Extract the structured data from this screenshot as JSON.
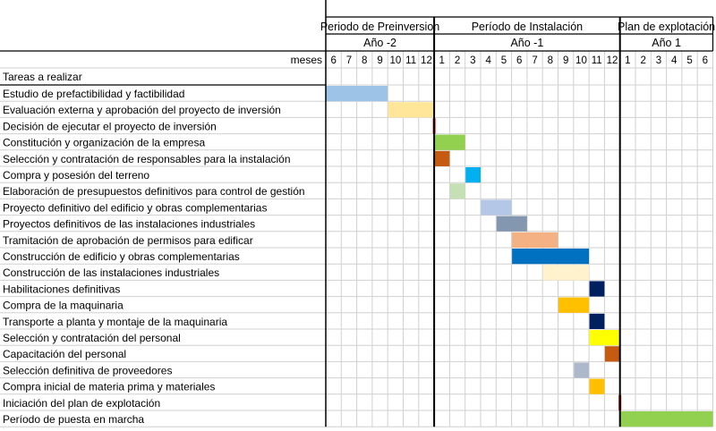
{
  "chart_data": {
    "type": "gantt",
    "header": {
      "periods": [
        {
          "label": "Periodo de Preinversion",
          "months": 7
        },
        {
          "label": "Período de Instalación",
          "months": 12
        },
        {
          "label": "Plan de explotación",
          "months": 6
        }
      ],
      "years": [
        {
          "label": "Año -2",
          "months": 7
        },
        {
          "label": "Año -1",
          "months": 12
        },
        {
          "label": "Año 1",
          "months": 6
        }
      ],
      "meses_label": "meses",
      "months": [
        "6",
        "7",
        "8",
        "9",
        "10",
        "11",
        "12",
        "1",
        "2",
        "3",
        "4",
        "5",
        "6",
        "7",
        "8",
        "9",
        "10",
        "11",
        "12",
        "1",
        "2",
        "3",
        "4",
        "5",
        "6"
      ]
    },
    "section_label": "Tareas a realizar",
    "tasks": [
      {
        "name": "Estudio de prefactibilidad y factibilidad",
        "start": 0,
        "span": 4,
        "color": "#9dc3e6"
      },
      {
        "name": "Evaluación externa y aprobación del proyecto de inversión",
        "start": 4,
        "span": 3,
        "color": "#ffe699"
      },
      {
        "name": "Decisión de ejecutar el proyecto de inversión",
        "start": 7,
        "span": 0,
        "color": "#ff0000"
      },
      {
        "name": "Constitución  y organización de la empresa",
        "start": 7,
        "span": 2,
        "color": "#92d050"
      },
      {
        "name": "Selección y contratación de responsables para la instalación",
        "start": 7,
        "span": 1,
        "color": "#c55a11"
      },
      {
        "name": "Compra y posesión del terreno",
        "start": 9,
        "span": 1,
        "color": "#00b0f0"
      },
      {
        "name": "Elaboración de presupuestos definitivos para control de gestión",
        "start": 8,
        "span": 1,
        "color": "#c5e0b4"
      },
      {
        "name": "Proyecto definitivo del edificio y obras complementarias",
        "start": 10,
        "span": 2,
        "color": "#b4c7e7"
      },
      {
        "name": "Proyectos definitivos de las instalaciones industriales",
        "start": 11,
        "span": 2,
        "color": "#8497b0"
      },
      {
        "name": "Tramitación de aprobación de permisos para edificar",
        "start": 12,
        "span": 3,
        "color": "#f4b183"
      },
      {
        "name": "Construcción de edificio y obras complementarias",
        "start": 12,
        "span": 5,
        "color": "#0070c0"
      },
      {
        "name": "Construcción de las instalaciones industriales",
        "start": 14,
        "span": 3,
        "color": "#fff2cc"
      },
      {
        "name": "Habilitaciones definitivas",
        "start": 17,
        "span": 1,
        "color": "#002060"
      },
      {
        "name": "Compra de la maquinaria",
        "start": 15,
        "span": 2,
        "color": "#ffc000"
      },
      {
        "name": "Transporte a planta y montaje de la maquinaria",
        "start": 17,
        "span": 1,
        "color": "#002060"
      },
      {
        "name": "Selección y contratación del personal",
        "start": 17,
        "span": 2,
        "color": "#ffff00"
      },
      {
        "name": "Capacitación del personal",
        "start": 18,
        "span": 1,
        "color": "#c55a11"
      },
      {
        "name": "Selección definitiva de proveedores",
        "start": 16,
        "span": 1,
        "color": "#adb9ca"
      },
      {
        "name": "Compra inicial de materia prima y materiales",
        "start": 17,
        "span": 1,
        "color": "#ffc000"
      },
      {
        "name": "Iniciación del plan de explotación",
        "start": 19,
        "span": 0,
        "color": "#ff0000"
      },
      {
        "name": "Período de puesta en marcha",
        "start": 19,
        "span": 6,
        "color": "#92d050"
      }
    ]
  }
}
